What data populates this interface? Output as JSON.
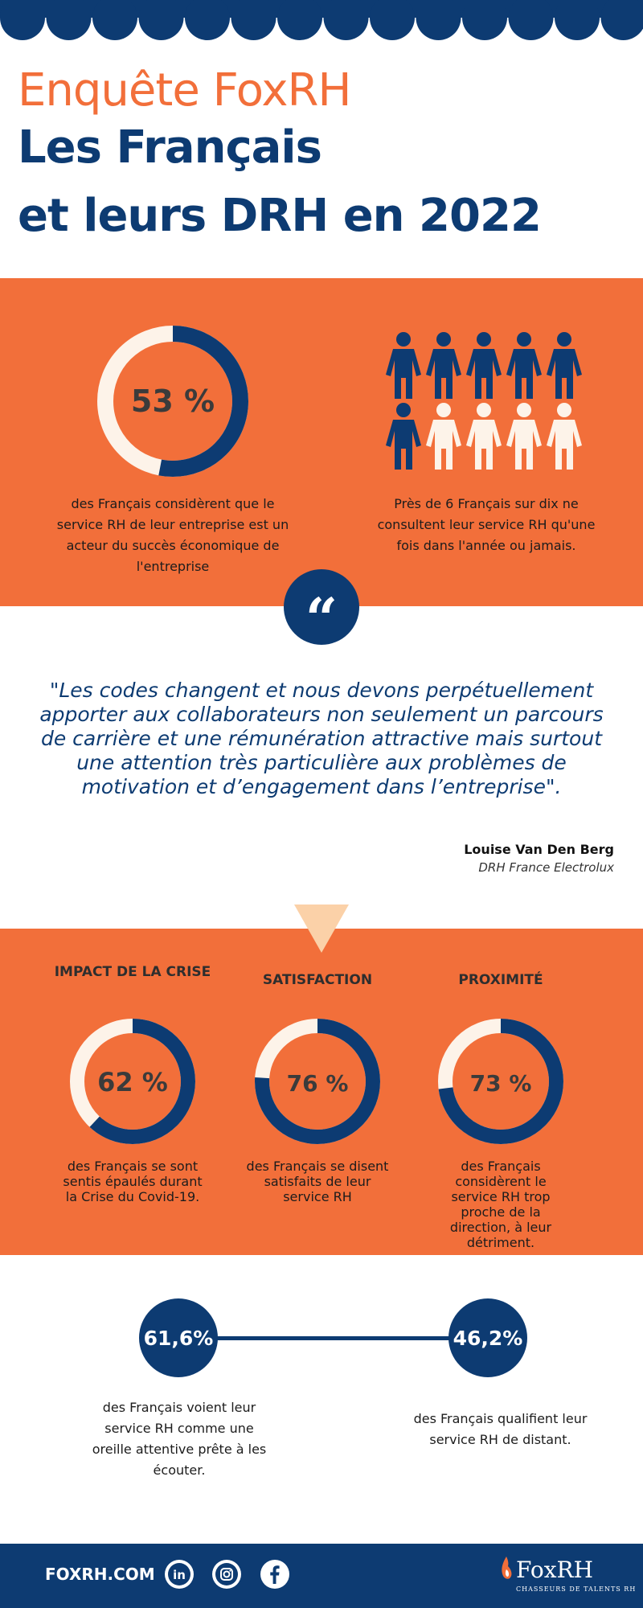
{
  "colors": {
    "navy": "#0d3b72",
    "orange": "#f26f3a",
    "cream": "#fdf3e9",
    "triangle": "#fbd1a8"
  },
  "header": {
    "survey_title": "Enquête FoxRH",
    "main_title_line1": "Les Français",
    "main_title_line2": "et leurs DRH en 2022"
  },
  "section1": {
    "stat1": {
      "value_label": "53 %",
      "percent": 53,
      "text": "des Français considèrent que le service RH de leur entreprise est un acteur du succès économique de l'entreprise"
    },
    "stat2": {
      "people_total": 10,
      "people_highlighted": 6,
      "text": "Près de 6 Français sur dix ne consultent leur service RH qu'une fois dans l'année ou jamais."
    }
  },
  "quote": {
    "icon": "quote-icon",
    "mark": "“",
    "text": "\"Les codes changent et nous devons perpétuellement apporter aux collaborateurs non seulement un parcours de carrière et une rémunération attractive mais surtout une attention très particulière aux problèmes de motivation et d’engagement dans l’entreprise\".",
    "author": "Louise Van Den Berg",
    "role": "DRH France Electrolux"
  },
  "section2": {
    "columns": [
      {
        "title": "IMPACT DE LA CRISE",
        "value_label": "62 %",
        "percent": 62,
        "text": "des Français se sont sentis épaulés durant la Crise du Covid-19."
      },
      {
        "title": "SATISFACTION",
        "value_label": "76 %",
        "percent": 76,
        "text": "des Français se disent satisfaits de leur service RH"
      },
      {
        "title": "PROXIMITÉ",
        "value_label": "73 %",
        "percent": 73,
        "text": "des Français considèrent le service RH trop proche de la direction, à leur détriment."
      }
    ]
  },
  "section3": {
    "left": {
      "value_label": "61,6%",
      "text": "des Français voient leur service RH comme une oreille attentive prête à les écouter."
    },
    "right": {
      "value_label": "46,2%",
      "text": "des Français qualifient leur service RH de distant."
    }
  },
  "footer": {
    "url": "FOXRH.COM",
    "social_icons": [
      "linkedin-icon",
      "instagram-icon",
      "facebook-icon"
    ],
    "logo_name": "FoxRH",
    "logo_tagline": "CHASSEURS DE TALENTS RH"
  }
}
